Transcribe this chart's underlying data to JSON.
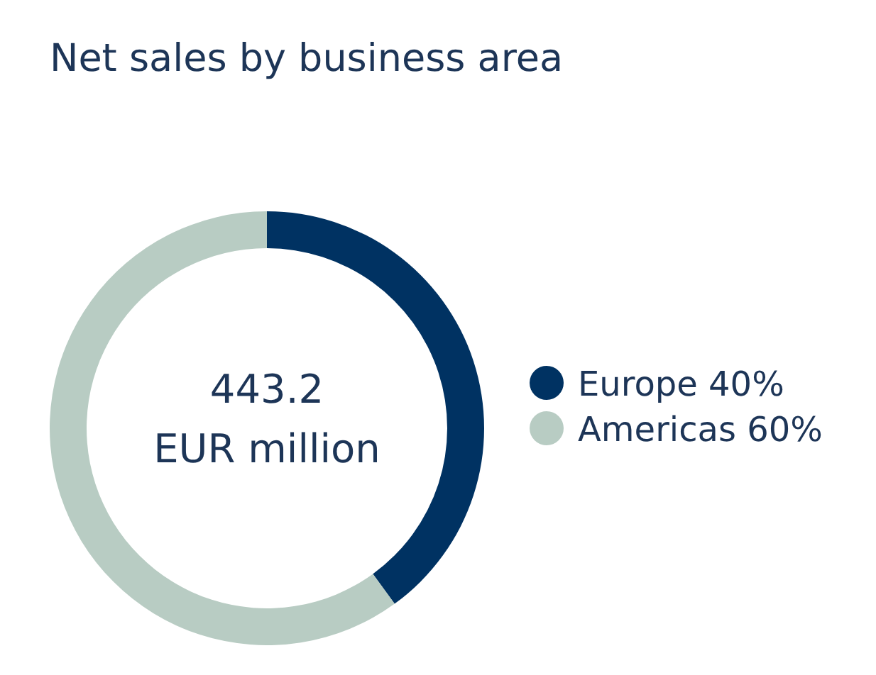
{
  "chart_data": {
    "type": "donut",
    "title": "Net sales by business area",
    "categories": [
      "Europe",
      "Americas"
    ],
    "values": [
      40,
      60
    ],
    "value_labels": [
      "40%",
      "60%"
    ],
    "colors": [
      "#003262",
      "#b8ccc3"
    ],
    "annotations": [
      "443.2",
      "EUR million"
    ],
    "legend": "right"
  }
}
